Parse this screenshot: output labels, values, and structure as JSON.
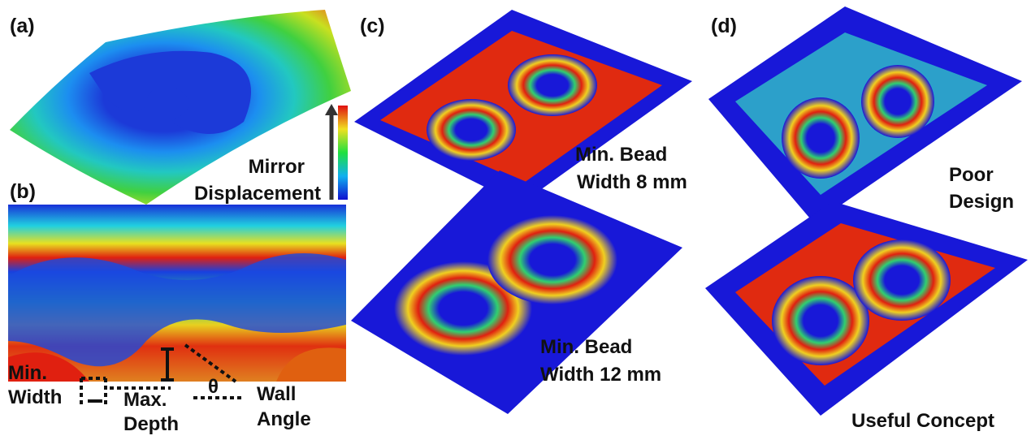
{
  "panels": [
    {
      "label": "(a)",
      "caption": [
        "Mirror",
        "Displacement"
      ]
    },
    {
      "label": "(b)",
      "annotations": {
        "min_width": [
          "Min.",
          "Width"
        ],
        "max_depth": [
          "Max.",
          "Depth"
        ],
        "wall_angle": [
          "Wall",
          "Angle"
        ],
        "angle_symbol": "θ"
      }
    },
    {
      "label": "(c)",
      "top_caption": [
        "Min. Bead",
        "Width 8 mm"
      ],
      "bottom_caption": [
        "Min. Bead",
        "Width 12 mm"
      ]
    },
    {
      "label": "(d)",
      "top_caption": [
        "Poor",
        "Design"
      ],
      "bottom_caption": [
        "Useful Concept"
      ]
    }
  ]
}
